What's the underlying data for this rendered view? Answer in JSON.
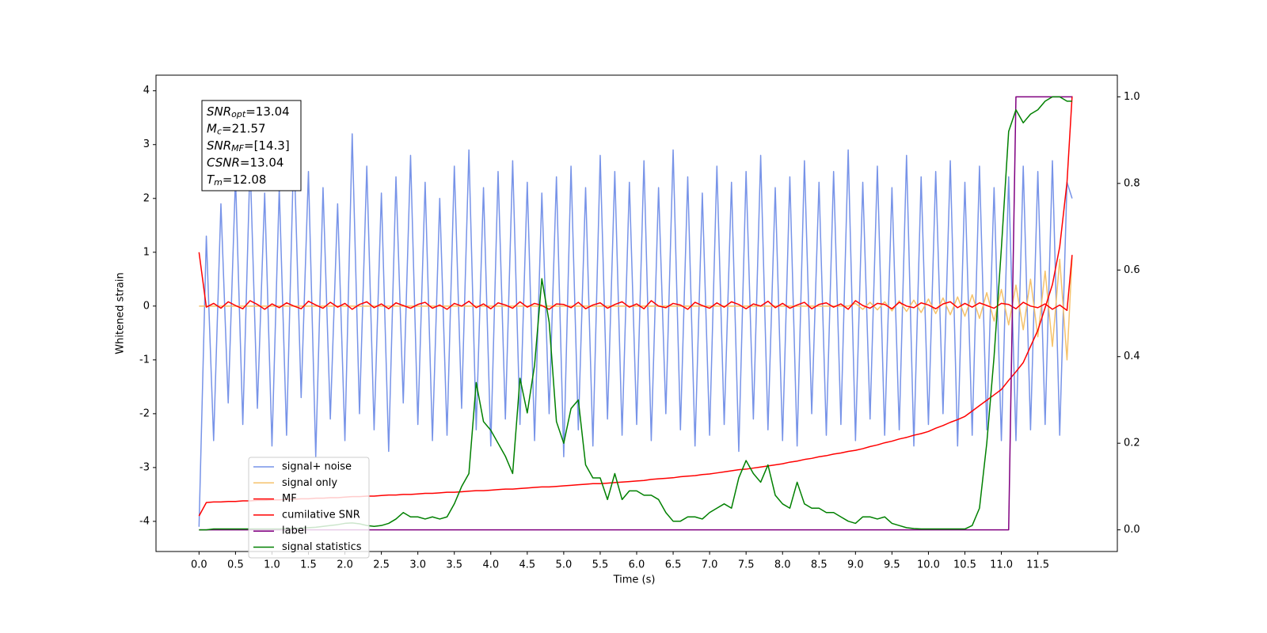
{
  "chart_data": {
    "type": "line",
    "xlabel": "Time (s)",
    "ylabel": "Whitened strain",
    "annotations": [
      {
        "base": "SNR",
        "sub": "opt",
        "value": "=13.04"
      },
      {
        "base": "M",
        "sub": "c",
        "value": "=21.57"
      },
      {
        "base": "SNR",
        "sub": "MF",
        "value": "=[14.3]"
      },
      {
        "base": "CSNR",
        "value": "=13.04"
      },
      {
        "base": "T",
        "sub": "m",
        "value": "=12.08"
      }
    ],
    "xlim": [
      -0.59,
      12.59
    ],
    "ylim": [
      -4.56,
      4.29
    ],
    "y2lim": [
      -0.05,
      1.05
    ],
    "xticks": [
      {
        "value": 0,
        "label": "0.0"
      },
      0.5,
      {
        "value": 1,
        "label": "1.0"
      },
      1.5,
      {
        "value": 2,
        "label": "2.0"
      },
      2.5,
      {
        "value": 3,
        "label": "3.0"
      },
      3.5,
      {
        "value": 4,
        "label": "4.0"
      },
      4.5,
      {
        "value": 5,
        "label": "5.0"
      },
      5.5,
      {
        "value": 6,
        "label": "6.0"
      },
      6.5,
      {
        "value": 7,
        "label": "7.0"
      },
      7.5,
      {
        "value": 8,
        "label": "8.0"
      },
      8.5,
      {
        "value": 9,
        "label": "9.0"
      },
      9.5,
      {
        "value": 10,
        "label": "10.0"
      },
      10.5,
      {
        "value": 11,
        "label": "11.0"
      },
      11.5
    ],
    "yticks": [
      -4,
      -3,
      -2,
      -1,
      0,
      1,
      2,
      3,
      4
    ],
    "y2ticks": [
      {
        "value": 0,
        "label": "0.0"
      },
      0.2,
      0.4,
      0.6,
      0.8,
      {
        "value": 1,
        "label": "1.0"
      }
    ],
    "legend": "lower left",
    "x": [
      0,
      0.1,
      0.2,
      0.3,
      0.4,
      0.5,
      0.6,
      0.7,
      0.8,
      0.9,
      1,
      1.1,
      1.2,
      1.3,
      1.4,
      1.5,
      1.6,
      1.7,
      1.8,
      1.9,
      2,
      2.1,
      2.2,
      2.3,
      2.4,
      2.5,
      2.6,
      2.7,
      2.8,
      2.9,
      3,
      3.1,
      3.2,
      3.3,
      3.4,
      3.5,
      3.6,
      3.7,
      3.8,
      3.9,
      4,
      4.1,
      4.2,
      4.3,
      4.4,
      4.5,
      4.6,
      4.7,
      4.8,
      4.9,
      5,
      5.1,
      5.2,
      5.3,
      5.4,
      5.5,
      5.6,
      5.7,
      5.8,
      5.9,
      6,
      6.1,
      6.2,
      6.3,
      6.4,
      6.5,
      6.6,
      6.7,
      6.8,
      6.9,
      7,
      7.1,
      7.2,
      7.3,
      7.4,
      7.5,
      7.6,
      7.7,
      7.8,
      7.9,
      8,
      8.1,
      8.2,
      8.3,
      8.4,
      8.5,
      8.6,
      8.7,
      8.8,
      8.9,
      9,
      9.1,
      9.2,
      9.3,
      9.4,
      9.5,
      9.6,
      9.7,
      9.8,
      9.9,
      10,
      10.1,
      10.2,
      10.3,
      10.4,
      10.5,
      10.6,
      10.7,
      10.8,
      10.9,
      11,
      11.1,
      11.2,
      11.3,
      11.4,
      11.5,
      11.6,
      11.7,
      11.8,
      11.9,
      11.97
    ],
    "series": [
      {
        "name": "signal+ noise",
        "color": "#7793e8",
        "values": [
          -4.1,
          1.3,
          -2.5,
          1.9,
          -1.8,
          2.4,
          -2.2,
          2.7,
          -1.9,
          2.1,
          -2.6,
          2.2,
          -2.4,
          3.0,
          -1.7,
          2.5,
          -2.8,
          2.2,
          -2.1,
          1.9,
          -2.5,
          3.2,
          -2.0,
          2.6,
          -2.3,
          2.1,
          -2.7,
          2.4,
          -1.8,
          2.8,
          -2.2,
          2.3,
          -2.5,
          2.0,
          -2.4,
          2.6,
          -1.9,
          2.9,
          -2.3,
          2.2,
          -2.6,
          2.5,
          -2.1,
          2.7,
          -2.2,
          2.3,
          -2.5,
          2.1,
          -2.0,
          2.4,
          -2.8,
          2.6,
          -2.3,
          2.2,
          -2.6,
          2.8,
          -2.1,
          2.5,
          -2.4,
          2.3,
          -2.2,
          2.7,
          -2.5,
          2.2,
          -2.0,
          2.9,
          -2.3,
          2.4,
          -2.6,
          2.1,
          -2.4,
          2.6,
          -2.2,
          2.3,
          -2.7,
          2.5,
          -2.1,
          2.8,
          -2.3,
          2.2,
          -2.5,
          2.4,
          -2.6,
          2.7,
          -2.0,
          2.3,
          -2.4,
          2.5,
          -2.2,
          2.9,
          -2.5,
          2.3,
          -2.1,
          2.6,
          -2.4,
          2.2,
          -2.3,
          2.8,
          -2.6,
          2.4,
          -2.2,
          2.5,
          -2.0,
          2.7,
          -2.6,
          2.3,
          -2.4,
          2.6,
          -2.3,
          2.2,
          -2.5,
          2.4,
          -2.5,
          2.6,
          -2.3,
          2.5,
          -2.2,
          2.7,
          -2.4,
          2.3,
          2.0
        ]
      },
      {
        "name": "signal only",
        "color": "#f5c26b",
        "values": [
          0,
          0,
          0,
          0,
          0,
          0,
          0,
          0,
          0,
          0,
          0,
          0,
          0,
          0,
          0,
          0,
          0,
          0,
          0,
          0,
          0,
          0,
          0,
          0,
          0,
          0,
          0,
          0,
          0,
          0,
          0,
          0,
          0,
          0,
          0,
          0,
          0,
          0,
          0,
          0,
          0,
          0,
          0,
          0,
          0,
          0,
          0,
          0,
          0,
          0,
          0,
          0,
          0,
          0,
          0,
          0,
          0,
          0,
          0,
          0,
          0,
          0,
          0,
          0,
          0,
          0,
          0,
          0,
          0,
          0,
          0,
          0,
          0,
          0,
          0,
          0,
          0,
          0,
          0,
          0,
          0,
          0,
          0,
          0,
          0,
          0,
          0,
          0,
          0,
          0,
          0.05,
          -0.06,
          0.07,
          -0.07,
          0.08,
          -0.09,
          0.1,
          -0.1,
          0.11,
          -0.12,
          0.13,
          -0.14,
          0.15,
          -0.16,
          0.17,
          -0.19,
          0.21,
          -0.23,
          0.25,
          -0.28,
          0.31,
          -0.35,
          0.39,
          -0.44,
          0.5,
          -0.57,
          0.65,
          -0.75,
          0.87,
          -1.0,
          0.9
        ]
      },
      {
        "name": "MF",
        "color": "#ff0000",
        "values": [
          1.0,
          -0.02,
          0.05,
          -0.04,
          0.08,
          0.01,
          -0.05,
          0.1,
          0.03,
          -0.06,
          0.04,
          -0.03,
          0.06,
          0.0,
          -0.05,
          0.09,
          0.02,
          -0.04,
          0.07,
          -0.02,
          0.05,
          -0.06,
          0.03,
          0.08,
          -0.03,
          0.04,
          -0.05,
          0.06,
          0.01,
          -0.04,
          0.03,
          0.07,
          -0.04,
          0.02,
          -0.06,
          0.05,
          0.0,
          0.09,
          -0.03,
          0.04,
          -0.05,
          0.06,
          0.02,
          -0.04,
          0.08,
          -0.02,
          0.05,
          0.01,
          -0.06,
          0.04,
          0.03,
          -0.03,
          0.07,
          -0.05,
          0.02,
          0.06,
          -0.04,
          0.03,
          0.08,
          -0.02,
          0.04,
          -0.05,
          0.1,
          0.0,
          -0.03,
          0.05,
          0.02,
          -0.06,
          0.07,
          0.01,
          -0.04,
          0.06,
          -0.02,
          0.08,
          0.03,
          -0.05,
          0.04,
          0.0,
          0.09,
          -0.03,
          0.05,
          -0.04,
          0.02,
          0.07,
          -0.05,
          0.03,
          0.06,
          -0.02,
          0.04,
          -0.06,
          0.1,
          0.01,
          -0.04,
          0.05,
          0.03,
          -0.05,
          0.07,
          0.0,
          -0.03,
          0.06,
          0.02,
          -0.05,
          0.04,
          0.08,
          -0.03,
          0.05,
          -0.02,
          0.06,
          0.01,
          -0.04,
          0.05,
          0.03,
          -0.05,
          0.07,
          0.0,
          -0.03,
          0.04,
          -0.06,
          0.02,
          -0.08,
          0.95
        ]
      },
      {
        "name": "cumilative SNR",
        "color": "#ff0000",
        "values": [
          -3.9,
          -3.65,
          -3.64,
          -3.64,
          -3.63,
          -3.63,
          -3.62,
          -3.62,
          -3.61,
          -3.61,
          -3.6,
          -3.6,
          -3.59,
          -3.59,
          -3.58,
          -3.58,
          -3.57,
          -3.57,
          -3.56,
          -3.56,
          -3.55,
          -3.54,
          -3.54,
          -3.53,
          -3.53,
          -3.52,
          -3.51,
          -3.51,
          -3.5,
          -3.5,
          -3.49,
          -3.48,
          -3.48,
          -3.47,
          -3.46,
          -3.46,
          -3.45,
          -3.44,
          -3.43,
          -3.43,
          -3.42,
          -3.41,
          -3.4,
          -3.4,
          -3.39,
          -3.38,
          -3.37,
          -3.36,
          -3.36,
          -3.35,
          -3.34,
          -3.33,
          -3.32,
          -3.31,
          -3.3,
          -3.3,
          -3.29,
          -3.28,
          -3.27,
          -3.26,
          -3.25,
          -3.24,
          -3.22,
          -3.21,
          -3.2,
          -3.19,
          -3.17,
          -3.16,
          -3.15,
          -3.13,
          -3.12,
          -3.1,
          -3.08,
          -3.06,
          -3.04,
          -3.03,
          -3.01,
          -2.99,
          -2.97,
          -2.95,
          -2.93,
          -2.9,
          -2.88,
          -2.85,
          -2.83,
          -2.8,
          -2.78,
          -2.75,
          -2.73,
          -2.7,
          -2.68,
          -2.65,
          -2.61,
          -2.58,
          -2.54,
          -2.51,
          -2.47,
          -2.44,
          -2.4,
          -2.37,
          -2.33,
          -2.27,
          -2.22,
          -2.16,
          -2.11,
          -2.05,
          -1.95,
          -1.85,
          -1.75,
          -1.65,
          -1.55,
          -1.38,
          -1.22,
          -1.05,
          -0.75,
          -0.45,
          -0.03,
          0.4,
          1.1,
          2.3,
          3.9
        ]
      },
      {
        "name": "label",
        "color": "#800080",
        "axis": "y2",
        "values": [
          0,
          0,
          0,
          0,
          0,
          0,
          0,
          0,
          0,
          0,
          0,
          0,
          0,
          0,
          0,
          0,
          0,
          0,
          0,
          0,
          0,
          0,
          0,
          0,
          0,
          0,
          0,
          0,
          0,
          0,
          0,
          0,
          0,
          0,
          0,
          0,
          0,
          0,
          0,
          0,
          0,
          0,
          0,
          0,
          0,
          0,
          0,
          0,
          0,
          0,
          0,
          0,
          0,
          0,
          0,
          0,
          0,
          0,
          0,
          0,
          0,
          0,
          0,
          0,
          0,
          0,
          0,
          0,
          0,
          0,
          0,
          0,
          0,
          0,
          0,
          0,
          0,
          0,
          0,
          0,
          0,
          0,
          0,
          0,
          0,
          0,
          0,
          0,
          0,
          0,
          0,
          0,
          0,
          0,
          0,
          0,
          0,
          0,
          0,
          0,
          0,
          0,
          0,
          0,
          0,
          0,
          0,
          0,
          0,
          0,
          0,
          0,
          1,
          1,
          1,
          1,
          1,
          1,
          1,
          1,
          1
        ]
      },
      {
        "name": "signal statistics",
        "color": "#008000",
        "axis": "y2",
        "values": [
          0,
          0,
          0.002,
          0.002,
          0.002,
          0.002,
          0.002,
          0.002,
          0.002,
          0.002,
          0.002,
          0.002,
          0.003,
          0.003,
          0.004,
          0.005,
          0.006,
          0.008,
          0.01,
          0.012,
          0.015,
          0.016,
          0.014,
          0.01,
          0.008,
          0.01,
          0.015,
          0.025,
          0.04,
          0.03,
          0.03,
          0.025,
          0.03,
          0.025,
          0.03,
          0.06,
          0.1,
          0.13,
          0.34,
          0.25,
          0.23,
          0.2,
          0.17,
          0.13,
          0.35,
          0.27,
          0.38,
          0.58,
          0.48,
          0.25,
          0.2,
          0.28,
          0.3,
          0.15,
          0.12,
          0.12,
          0.07,
          0.13,
          0.07,
          0.09,
          0.09,
          0.08,
          0.08,
          0.07,
          0.04,
          0.02,
          0.02,
          0.03,
          0.03,
          0.025,
          0.04,
          0.05,
          0.06,
          0.05,
          0.12,
          0.16,
          0.13,
          0.11,
          0.15,
          0.08,
          0.06,
          0.05,
          0.11,
          0.06,
          0.05,
          0.05,
          0.04,
          0.04,
          0.03,
          0.02,
          0.015,
          0.03,
          0.03,
          0.025,
          0.03,
          0.015,
          0.01,
          0.005,
          0.003,
          0.002,
          0.002,
          0.002,
          0.002,
          0.002,
          0.002,
          0.002,
          0.01,
          0.05,
          0.2,
          0.4,
          0.65,
          0.92,
          0.97,
          0.94,
          0.96,
          0.97,
          0.99,
          1.0,
          1.0,
          0.99,
          0.99
        ]
      }
    ]
  }
}
